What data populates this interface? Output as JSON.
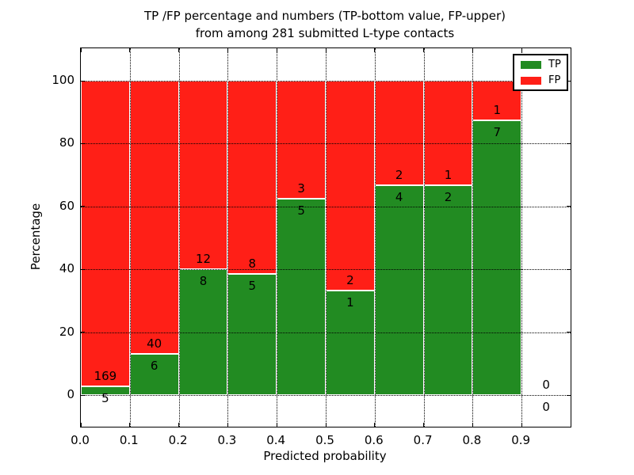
{
  "title": {
    "line1": "TP /FP percentage and numbers (TP-bottom value, FP-upper)",
    "line2": "from among 281 submitted L-type contacts"
  },
  "axes": {
    "xlabel": "Predicted probability",
    "ylabel": "Percentage",
    "x_ticks": [
      "0.0",
      "0.1",
      "0.2",
      "0.3",
      "0.4",
      "0.5",
      "0.6",
      "0.7",
      "0.8",
      "0.9"
    ],
    "y_ticks": [
      "0",
      "20",
      "40",
      "60",
      "80",
      "100"
    ]
  },
  "legend": [
    {
      "label": "TP",
      "color": "#228b22"
    },
    {
      "label": "FP",
      "color": "#ff1f17"
    }
  ],
  "colors": {
    "tp": "#228b22",
    "fp": "#ff1f17",
    "bar_edge": "#ffffff",
    "grid": "#000000",
    "text": "#000000",
    "background": "#ffffff"
  },
  "chart_data": {
    "type": "bar",
    "stacked": true,
    "normalized_to_percent": true,
    "title": "TP /FP percentage and numbers (TP-bottom value, FP-upper) from among 281 submitted L-type contacts",
    "xlabel": "Predicted probability",
    "ylabel": "Percentage",
    "xlim": [
      0.0,
      1.0
    ],
    "ylim": [
      -10,
      110
    ],
    "x_tick_values": [
      0.0,
      0.1,
      0.2,
      0.3,
      0.4,
      0.5,
      0.6,
      0.7,
      0.8,
      0.9
    ],
    "y_tick_values": [
      0,
      20,
      40,
      60,
      80,
      100
    ],
    "grid": "dotted",
    "legend_position": "upper right",
    "total_contacts": 281,
    "series": [
      {
        "name": "TP",
        "color": "#228b22",
        "position": "bottom"
      },
      {
        "name": "FP",
        "color": "#ff1f17",
        "position": "top"
      }
    ],
    "bins": [
      {
        "x_start": 0.0,
        "x_end": 0.1,
        "tp": 5,
        "fp": 169,
        "tp_pct": 2.87
      },
      {
        "x_start": 0.1,
        "x_end": 0.2,
        "tp": 6,
        "fp": 40,
        "tp_pct": 13.04
      },
      {
        "x_start": 0.2,
        "x_end": 0.3,
        "tp": 8,
        "fp": 12,
        "tp_pct": 40.0
      },
      {
        "x_start": 0.3,
        "x_end": 0.4,
        "tp": 5,
        "fp": 8,
        "tp_pct": 38.46
      },
      {
        "x_start": 0.4,
        "x_end": 0.5,
        "tp": 5,
        "fp": 3,
        "tp_pct": 62.5
      },
      {
        "x_start": 0.5,
        "x_end": 0.6,
        "tp": 1,
        "fp": 2,
        "tp_pct": 33.33
      },
      {
        "x_start": 0.6,
        "x_end": 0.7,
        "tp": 4,
        "fp": 2,
        "tp_pct": 66.67
      },
      {
        "x_start": 0.7,
        "x_end": 0.8,
        "tp": 2,
        "fp": 1,
        "tp_pct": 66.67
      },
      {
        "x_start": 0.8,
        "x_end": 0.9,
        "tp": 7,
        "fp": 1,
        "tp_pct": 87.5
      },
      {
        "x_start": 0.9,
        "x_end": 1.0,
        "tp": 0,
        "fp": 0,
        "tp_pct": null
      }
    ]
  }
}
